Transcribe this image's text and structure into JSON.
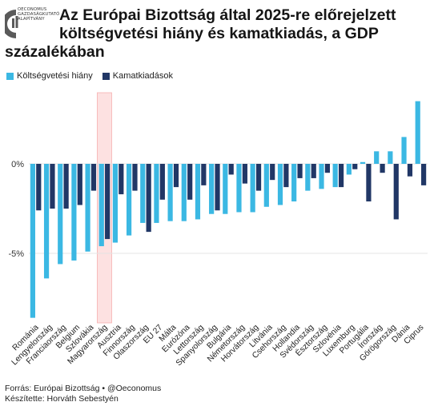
{
  "logo": {
    "lines": [
      "OECONOMUS",
      "GAZDASÁGKUTATÓ",
      "ALAPÍTVÁNY"
    ],
    "color": "#5a5a5a"
  },
  "title_line1": "Az Európai Bizottság által 2025-re előrejelzett",
  "title_line2": "költségvetési hiány és kamatkiadás, a GDP",
  "title_line3": "százalékában",
  "footer": {
    "source": "Forrás: Európai Bizottság • @Oeconomus",
    "author": "Készítette: Horváth Sebestyén"
  },
  "colors": {
    "deficit": "#3bb8e3",
    "interest": "#213766",
    "highlight": "#fde1e1",
    "highlight_border": "#f7b0b0",
    "grid": "#e4e4e4"
  },
  "chart_data": {
    "type": "bar",
    "title": "Az Európai Bizottság által 2025-re előrejelzett költségvetési hiány és kamatkiadás, a GDP százalékában",
    "xlabel": "",
    "ylabel": "",
    "ylim": [
      -8.9,
      3.5
    ],
    "yticks": [
      {
        "value": 0,
        "label": "0%"
      },
      {
        "value": -5,
        "label": "-5%"
      }
    ],
    "legend_position": "top-left",
    "grid": "horizontal",
    "highlight_category": "Magyarország",
    "categories": [
      "Románia",
      "Lengyelország",
      "Franciaország",
      "Belgium",
      "Szlovákia",
      "Magyarország",
      "Ausztria",
      "Finnország",
      "Olaszország",
      "EU 27",
      "Málta",
      "Eurózóna",
      "Lettország",
      "Spanyolország",
      "Bulgária",
      "Németország",
      "Horvátország",
      "Litvánia",
      "Csehország",
      "Hollandia",
      "Svédország",
      "Észtország",
      "Szlovénia",
      "Luxemburg",
      "Portugália",
      "Írország",
      "Görögország",
      "Dánia",
      "Ciprus"
    ],
    "series": [
      {
        "name": "Költségvetési hiány",
        "values": [
          -8.6,
          -6.4,
          -5.6,
          -5.4,
          -4.9,
          -4.6,
          -4.4,
          -4.0,
          -3.3,
          -3.3,
          -3.2,
          -3.2,
          -3.1,
          -2.8,
          -2.8,
          -2.7,
          -2.7,
          -2.4,
          -2.3,
          -2.1,
          -1.5,
          -1.4,
          -1.3,
          -0.6,
          0.1,
          0.7,
          0.7,
          1.5,
          3.5
        ]
      },
      {
        "name": "Kamatkiadások",
        "values": [
          -2.6,
          -2.5,
          -2.5,
          -2.3,
          -1.5,
          -4.2,
          -1.7,
          -1.5,
          -3.8,
          -2.0,
          -1.3,
          -2.0,
          -1.2,
          -2.6,
          -0.6,
          -1.1,
          -1.5,
          -0.9,
          -1.3,
          -0.8,
          -0.8,
          -0.5,
          -1.3,
          -0.3,
          -2.1,
          -0.5,
          -3.1,
          -0.7,
          -1.2
        ]
      }
    ]
  }
}
